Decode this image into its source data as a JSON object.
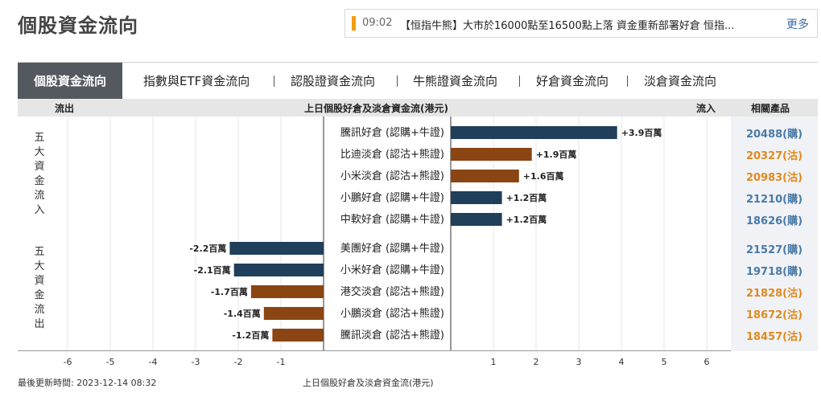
{
  "page": {
    "title": "個股資金流向"
  },
  "ticker": {
    "time": "09:02",
    "text": "【恒指牛熊】大市於16000點至16500點上落 資金重新部署好倉 恒指...",
    "more": "更多"
  },
  "tabs": [
    {
      "label": "個股資金流向"
    },
    {
      "label": "指數與ETF資金流向"
    },
    {
      "label": "認股證資金流向"
    },
    {
      "label": "牛熊證資金流向"
    },
    {
      "label": "好倉資金流向"
    },
    {
      "label": "淡倉資金流向"
    }
  ],
  "header": {
    "outflow": "流出",
    "center": "上日個股好倉及淡倉資金流(港元)",
    "inflow": "流入",
    "related": "相關產品"
  },
  "side_labels": {
    "inflow_group": "五大資金流入",
    "outflow_group": "五大資金流出"
  },
  "colors": {
    "bull": "#1f3f5b",
    "bear": "#8b4513",
    "bull_text": "#4a7aa8",
    "bear_text": "#e08a1e"
  },
  "chart_data": {
    "type": "bar",
    "orientation": "horizontal",
    "unit": "百萬",
    "xlim": [
      -6,
      6
    ],
    "xticks": [
      "-6",
      "-5",
      "-4",
      "-3",
      "-2",
      "-1",
      "1",
      "2",
      "3",
      "4",
      "5",
      "6"
    ],
    "x_tick_values": [
      -6,
      -5,
      -4,
      -3,
      -2,
      -1,
      1,
      2,
      3,
      4,
      5,
      6
    ],
    "xlabel": "上日個股好倉及淡倉資金流(港元)",
    "rows": [
      {
        "name": "騰訊好倉 (認購+牛證)",
        "value": 3.9,
        "label": "+3.9百萬",
        "kind": "bull",
        "product": "20488(購)"
      },
      {
        "name": "比迪淡倉 (認沽+熊證)",
        "value": 1.9,
        "label": "+1.9百萬",
        "kind": "bear",
        "product": "20327(沽)"
      },
      {
        "name": "小米淡倉 (認沽+熊證)",
        "value": 1.6,
        "label": "+1.6百萬",
        "kind": "bear",
        "product": "20983(沽)"
      },
      {
        "name": "小鵬好倉 (認購+牛證)",
        "value": 1.2,
        "label": "+1.2百萬",
        "kind": "bull",
        "product": "21210(購)"
      },
      {
        "name": "中軟好倉 (認購+牛證)",
        "value": 1.2,
        "label": "+1.2百萬",
        "kind": "bull",
        "product": "18626(購)"
      },
      {
        "name": "美團好倉 (認購+牛證)",
        "value": -2.2,
        "label": "-2.2百萬",
        "kind": "bull",
        "product": "21527(購)"
      },
      {
        "name": "小米好倉 (認購+牛證)",
        "value": -2.1,
        "label": "-2.1百萬",
        "kind": "bull",
        "product": "19718(購)"
      },
      {
        "name": "港交淡倉 (認沽+熊證)",
        "value": -1.7,
        "label": "-1.7百萬",
        "kind": "bear",
        "product": "21828(沽)"
      },
      {
        "name": "小鵬淡倉 (認沽+熊證)",
        "value": -1.4,
        "label": "-1.4百萬",
        "kind": "bear",
        "product": "18672(沽)"
      },
      {
        "name": "騰訊淡倉 (認沽+熊證)",
        "value": -1.2,
        "label": "-1.2百萬",
        "kind": "bear",
        "product": "18457(沽)"
      }
    ]
  },
  "footer": {
    "updated": "最後更新時間: 2023-12-14 08:32",
    "caption": "上日個股好倉及淡倉資金流(港元)"
  }
}
